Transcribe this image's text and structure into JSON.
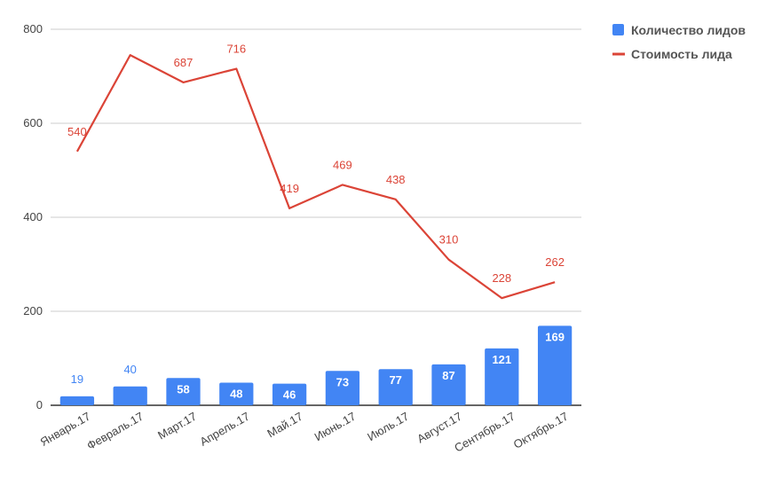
{
  "chart_data": {
    "type": "bar",
    "categories": [
      "Январь.17",
      "Февраль.17",
      "Март.17",
      "Апрель.17",
      "Май.17",
      "Июнь.17",
      "Июль.17",
      "Август.17",
      "Сентябрь.17",
      "Октябрь.17"
    ],
    "series": [
      {
        "name": "Количество лидов",
        "type": "bar",
        "color": "#4285f4",
        "values": [
          19,
          40,
          58,
          48,
          46,
          73,
          77,
          87,
          121,
          169
        ]
      },
      {
        "name": "Стоимость лида",
        "type": "line",
        "color": "#db4437",
        "values": [
          540,
          745,
          687,
          716,
          419,
          469,
          438,
          310,
          228,
          262
        ],
        "labels": [
          "540",
          "",
          "687",
          "716",
          "419",
          "469",
          "438",
          "310",
          "228",
          "262"
        ]
      }
    ],
    "ylim": [
      0,
      800
    ],
    "yticks": [
      0,
      200,
      400,
      600,
      800
    ],
    "ytick_labels": [
      "0",
      "200",
      "400",
      "600",
      "800"
    ],
    "grid": true,
    "legend_position": "top-right",
    "title": "",
    "xlabel": "",
    "ylabel": ""
  }
}
